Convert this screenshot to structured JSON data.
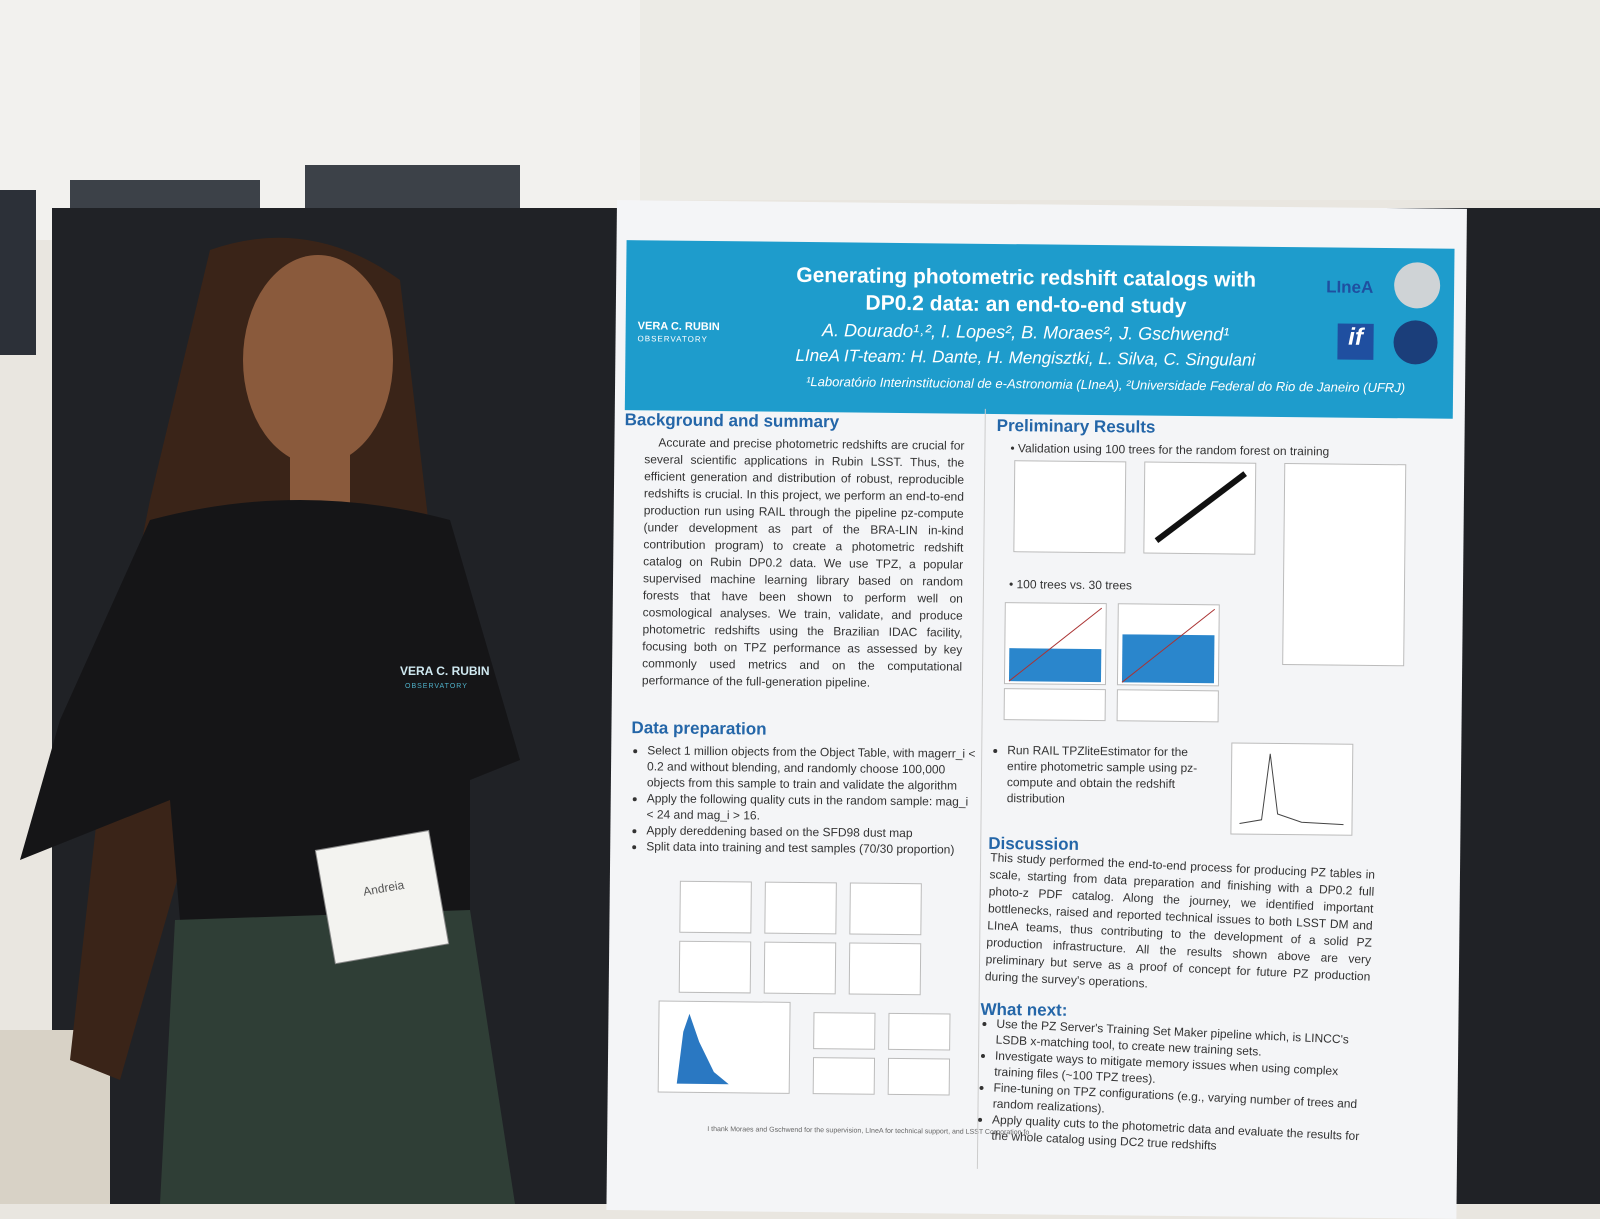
{
  "header": {
    "title": [
      "Generating photometric redshift catalogs with",
      "DP0.2 data: an end-to-end study"
    ],
    "authors": "A. Dourado¹˒², I. Lopes², B. Moraes², J. Gschwend¹",
    "team": "LIneA IT-team: H. Dante, H. Mengisztki, L. Silva, C. Singulani",
    "affiliations": "¹Laboratório Interinstitucional de e-Astronomia (LIneA), ²Universidade Federal do Rio de Janeiro (UFRJ)",
    "logo_left": [
      "VERA C. RUBIN",
      "OBSERVATORY"
    ],
    "logo_linea": "LIneA",
    "logo_if": "if"
  },
  "background": {
    "heading": "Background and summary",
    "text": "Accurate and precise photometric redshifts are crucial for several scientific applications in Rubin LSST. Thus, the efficient generation and distribution of robust, reproducible redshifts is crucial. In this project, we perform an end-to-end production run using RAIL through the pipeline pz-compute (under development as part of the BRA-LIN in-kind contribution program) to create a photometric redshift catalog on Rubin DP0.2 data. We use TPZ, a popular supervised machine learning library based on random forests that have been shown to perform well on cosmological analyses. We train, validate, and produce photometric redshifts using the Brazilian IDAC facility, focusing both on TPZ performance as assessed by key commonly used metrics and on the computational performance of the full-generation pipeline."
  },
  "data_preparation": {
    "heading": "Data preparation",
    "bullets": [
      "Select 1 million objects from the Object Table, with magerr_i < 0.2 and without blending, and randomly choose 100,000 objects from this sample to train and validate the algorithm",
      "Apply the following quality cuts in the random sample: mag_i < 24 and mag_i > 16.",
      "Apply dereddening based on the SFD98 dust map",
      "Split data into training and test samples (70/30 proportion)"
    ]
  },
  "results": {
    "heading": "Preliminary Results",
    "bullets": [
      "Validation using 100 trees for the random forest on training",
      "100 trees vs. 30 trees",
      "Run RAIL TPZliteEstimator for the entire photometric sample using pz-compute and obtain the redshift distribution"
    ]
  },
  "discussion": {
    "heading": "Discussion",
    "text": "This study performed the end-to-end process for producing PZ tables in scale, starting from data preparation and finishing with a DP0.2 full photo-z PDF catalog. Along the journey, we identified important bottlenecks, raised and reported technical issues to both LSST DM and LIneA teams, thus contributing to the development of a solid PZ production infrastructure. All the results shown above are very preliminary but serve as a proof of concept for future PZ production during the survey's operations."
  },
  "next": {
    "heading": "What next:",
    "bullets": [
      "Use the PZ Server's Training Set Maker pipeline which, is LINCC's LSDB x-matching tool, to create new training sets.",
      "Investigate ways to mitigate memory issues when using complex training files (~100 TPZ trees).",
      "Fine-tuning on TPZ configurations (e.g., varying number of trees and random realizations).",
      "Apply quality cuts to the photometric data and evaluate the results for the whole catalog using DC2 true redshifts"
    ]
  },
  "acknowledgement": "I thank Moraes and Gschwend for the supervision, LIneA for technical support, and LSST Corporation fo",
  "badge": {
    "name": "Andreia"
  },
  "shirt_logo": [
    "VERA C. RUBIN",
    "OBSERVATORY"
  ]
}
